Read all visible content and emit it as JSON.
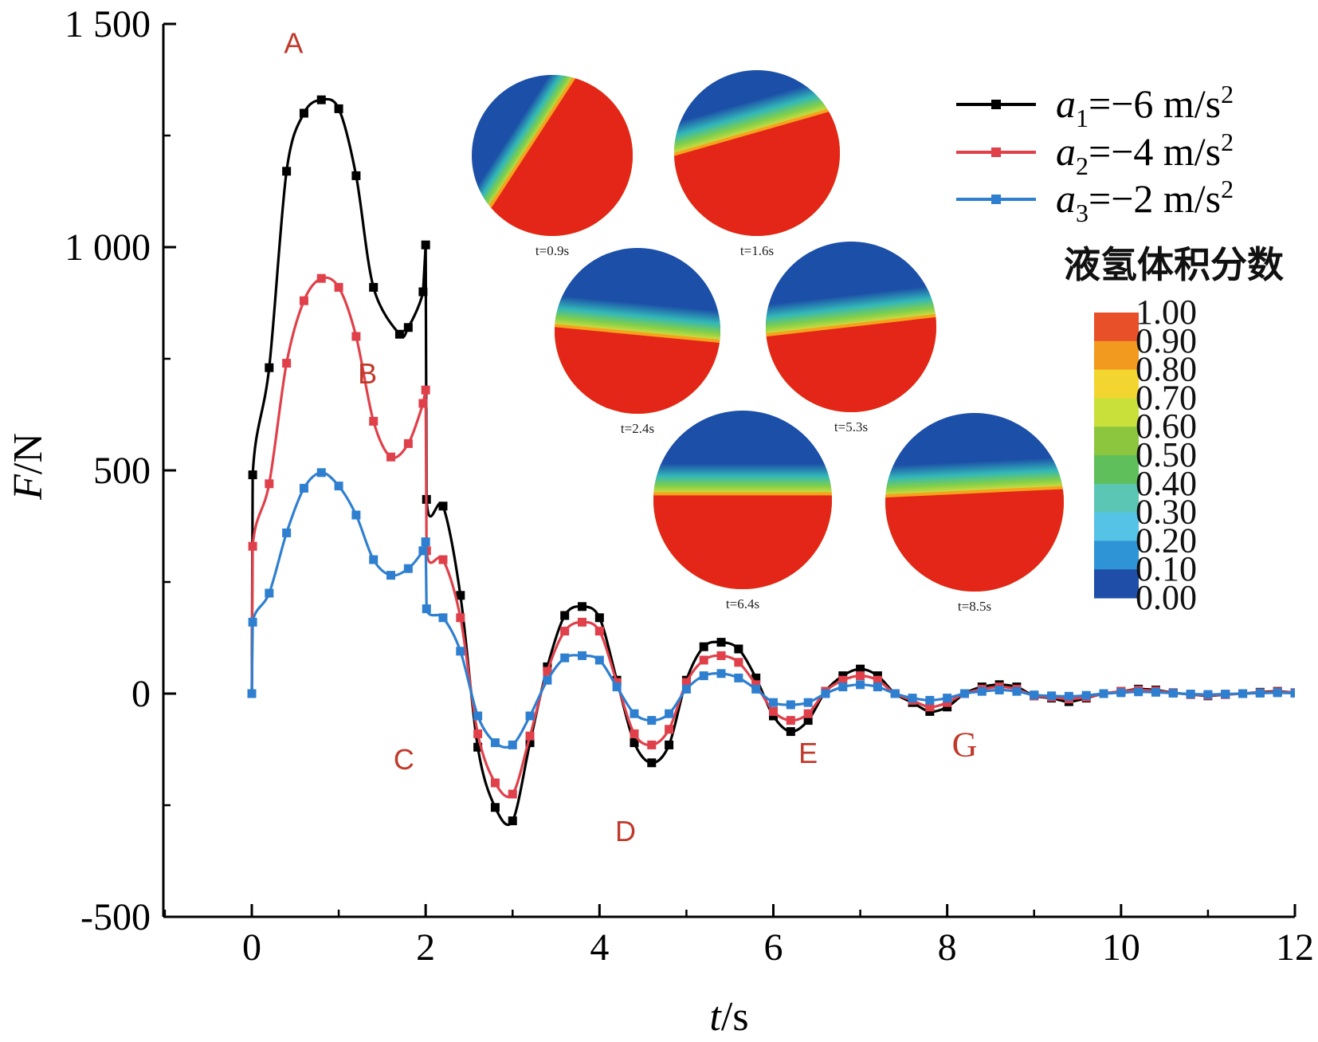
{
  "chart_data": {
    "type": "line",
    "xlabel": "t/s",
    "ylabel": "F/N",
    "xlim": [
      -1,
      12
    ],
    "ylim": [
      -500,
      1500
    ],
    "xticks": [
      0,
      2,
      4,
      6,
      8,
      10,
      12
    ],
    "yticks": [
      {
        "value": 1500,
        "label": "1 500"
      },
      {
        "value": 1000,
        "label": "1 000"
      },
      {
        "value": 500,
        "label": "500"
      },
      {
        "value": 0,
        "label": "0"
      },
      {
        "value": -500,
        "label": "-500"
      }
    ],
    "legend_position": "top-right",
    "series": [
      {
        "name": "a1=−6 m/s2",
        "name_var": "a",
        "name_sub": "1",
        "name_rest": "=−6 m/s",
        "name_sup": "2",
        "color": "#000000",
        "x": [
          0,
          0.01,
          0.2,
          0.4,
          0.6,
          0.8,
          1.0,
          1.2,
          1.4,
          1.7,
          1.8,
          1.97,
          2.0,
          2.01,
          2.2,
          2.4,
          2.6,
          2.8,
          3.0,
          3.2,
          3.4,
          3.6,
          3.8,
          4.0,
          4.2,
          4.4,
          4.6,
          4.8,
          5.0,
          5.2,
          5.4,
          5.6,
          5.8,
          6.0,
          6.2,
          6.4,
          6.6,
          6.8,
          7.0,
          7.2,
          7.4,
          7.6,
          7.8,
          8.0,
          8.2,
          8.4,
          8.6,
          8.8,
          9.0,
          9.2,
          9.4,
          9.6,
          9.8,
          10.0,
          10.2,
          10.4,
          10.6,
          10.8,
          11.0,
          11.2,
          11.4,
          11.6,
          11.8,
          12.0
        ],
        "values": [
          0,
          490,
          730,
          1170,
          1300,
          1330,
          1310,
          1160,
          910,
          805,
          820,
          900,
          1005,
          435,
          420,
          220,
          -120,
          -255,
          -285,
          -110,
          60,
          175,
          195,
          170,
          30,
          -110,
          -155,
          -115,
          30,
          105,
          115,
          100,
          35,
          -50,
          -85,
          -60,
          5,
          40,
          55,
          40,
          0,
          -20,
          -40,
          -30,
          0,
          15,
          20,
          15,
          -5,
          -10,
          -18,
          -10,
          0,
          5,
          10,
          8,
          2,
          -2,
          -5,
          -2,
          0,
          3,
          5,
          2
        ]
      },
      {
        "name": "a2=−4 m/s2",
        "name_var": "a",
        "name_sub": "2",
        "name_rest": "=−4 m/s",
        "name_sup": "2",
        "color": "#e0404a",
        "x": [
          0,
          0.01,
          0.2,
          0.4,
          0.6,
          0.8,
          1.0,
          1.2,
          1.4,
          1.6,
          1.8,
          1.97,
          2.0,
          2.01,
          2.2,
          2.4,
          2.6,
          2.8,
          3.0,
          3.2,
          3.4,
          3.6,
          3.8,
          4.0,
          4.2,
          4.4,
          4.6,
          4.8,
          5.0,
          5.2,
          5.4,
          5.6,
          5.8,
          6.0,
          6.2,
          6.4,
          6.6,
          6.8,
          7.0,
          7.2,
          7.4,
          7.6,
          7.8,
          8.0,
          8.2,
          8.4,
          8.6,
          8.8,
          9.0,
          9.2,
          9.4,
          9.6,
          9.8,
          10.0,
          10.2,
          10.4,
          10.6,
          10.8,
          11.0,
          11.2,
          11.4,
          11.6,
          11.8,
          12.0
        ],
        "values": [
          0,
          330,
          470,
          740,
          880,
          930,
          910,
          800,
          610,
          530,
          560,
          650,
          680,
          320,
          300,
          170,
          -90,
          -200,
          -225,
          -95,
          50,
          140,
          160,
          140,
          25,
          -90,
          -115,
          -80,
          25,
          75,
          85,
          70,
          20,
          -40,
          -60,
          -45,
          5,
          30,
          40,
          30,
          0,
          -15,
          -30,
          -20,
          0,
          10,
          15,
          10,
          -5,
          -8,
          -12,
          -8,
          0,
          5,
          8,
          6,
          2,
          -2,
          -4,
          -2,
          0,
          2,
          4,
          2
        ]
      },
      {
        "name": "a3=−2 m/s2",
        "name_var": "a",
        "name_sub": "3",
        "name_rest": "=−2 m/s",
        "name_sup": "2",
        "color": "#2f7fd0",
        "x": [
          0,
          0.01,
          0.2,
          0.4,
          0.6,
          0.8,
          1.0,
          1.2,
          1.4,
          1.6,
          1.8,
          1.97,
          2.0,
          2.01,
          2.2,
          2.4,
          2.6,
          2.8,
          3.0,
          3.2,
          3.4,
          3.6,
          3.8,
          4.0,
          4.2,
          4.4,
          4.6,
          4.8,
          5.0,
          5.2,
          5.4,
          5.6,
          5.8,
          6.0,
          6.2,
          6.4,
          6.6,
          6.8,
          7.0,
          7.2,
          7.4,
          7.6,
          7.8,
          8.0,
          8.2,
          8.4,
          8.6,
          8.8,
          9.0,
          9.2,
          9.4,
          9.6,
          9.8,
          10.0,
          10.2,
          10.4,
          10.6,
          10.8,
          11.0,
          11.2,
          11.4,
          11.6,
          11.8,
          12.0
        ],
        "values": [
          0,
          160,
          225,
          360,
          460,
          495,
          465,
          400,
          300,
          265,
          280,
          320,
          340,
          190,
          170,
          95,
          -50,
          -110,
          -115,
          -50,
          30,
          80,
          85,
          75,
          15,
          -45,
          -60,
          -45,
          10,
          40,
          45,
          35,
          10,
          -20,
          -25,
          -20,
          0,
          15,
          20,
          15,
          0,
          -10,
          -15,
          -10,
          0,
          5,
          8,
          5,
          -3,
          -5,
          -6,
          -4,
          0,
          2,
          4,
          3,
          1,
          -1,
          -2,
          -1,
          0,
          1,
          2,
          1
        ]
      }
    ],
    "annotations": [
      {
        "text": "A",
        "x": 0.48,
        "y": 1435,
        "color": "#c0392b"
      },
      {
        "text": "B",
        "x": 1.33,
        "y": 695,
        "color": "#c0392b"
      },
      {
        "text": "C",
        "x": 1.75,
        "y": -170,
        "color": "#c0392b"
      },
      {
        "text": "D",
        "x": 4.3,
        "y": -330,
        "color": "#c0392b"
      },
      {
        "text": "E",
        "x": 6.4,
        "y": -155,
        "color": "#c0392b"
      },
      {
        "text": "G",
        "x": 8.2,
        "y": -140,
        "color": "#c0392b"
      }
    ],
    "insets": [
      {
        "label": "t=0.9s",
        "kind": "diag",
        "t": 0.9
      },
      {
        "label": "t=1.6s",
        "kind": "tilt",
        "t": 1.6
      },
      {
        "label": "t=2.4s",
        "kind": "tilt",
        "t": 2.4
      },
      {
        "label": "t=5.3s",
        "kind": "tilt",
        "t": 5.3
      },
      {
        "label": "t=6.4s",
        "kind": "tilt",
        "t": 6.4
      },
      {
        "label": "t=8.5s",
        "kind": "tilt",
        "t": 8.5
      }
    ],
    "colorbar": {
      "title": "液氢体积分数",
      "labels": [
        "1.00",
        "0.90",
        "0.80",
        "0.70",
        "0.60",
        "0.50",
        "0.40",
        "0.30",
        "0.20",
        "0.10",
        "0.00"
      ],
      "colors": [
        "#e8502a",
        "#f29a1f",
        "#f2d52e",
        "#c9e03a",
        "#8cc63f",
        "#5fbf5a",
        "#5cc6b4",
        "#55c3e6",
        "#2f94d6",
        "#1f4ea8"
      ]
    }
  }
}
